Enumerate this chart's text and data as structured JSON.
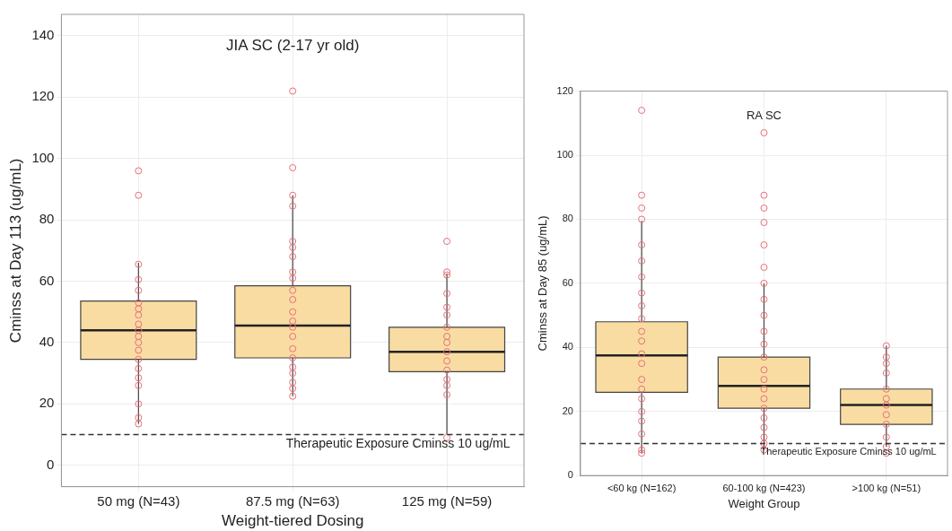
{
  "chart_data": [
    {
      "type": "box",
      "title": "JIA SC (2-17 yr old)",
      "xlabel": "Weight-tiered Dosing",
      "ylabel": "Cminss at Day 113 (ug/mL)",
      "categories": [
        "50 mg (N=43)",
        "87.5 mg (N=63)",
        "125 mg (N=59)"
      ],
      "color": "#f9dca2",
      "boxes": [
        {
          "low": 13.5,
          "q1": 34.5,
          "median": 44,
          "q3": 53.5,
          "high": 66
        },
        {
          "low": 22.5,
          "q1": 35,
          "median": 45.5,
          "q3": 58.5,
          "high": 88
        },
        {
          "low": 10,
          "q1": 30.5,
          "median": 37,
          "q3": 45,
          "high": 62.5
        }
      ],
      "series": [
        {
          "type": "scatter",
          "color": "#e8707a",
          "x": [
            "50 mg (N=43)",
            "50 mg (N=43)",
            "50 mg (N=43)",
            "50 mg (N=43)",
            "50 mg (N=43)",
            "50 mg (N=43)",
            "50 mg (N=43)",
            "50 mg (N=43)",
            "50 mg (N=43)",
            "50 mg (N=43)",
            "50 mg (N=43)",
            "50 mg (N=43)",
            "50 mg (N=43)",
            "50 mg (N=43)",
            "50 mg (N=43)",
            "50 mg (N=43)",
            "50 mg (N=43)",
            "50 mg (N=43)",
            "50 mg (N=43)",
            "50 mg (N=43)",
            "87.5 mg (N=63)",
            "87.5 mg (N=63)",
            "87.5 mg (N=63)",
            "87.5 mg (N=63)",
            "87.5 mg (N=63)",
            "87.5 mg (N=63)",
            "87.5 mg (N=63)",
            "87.5 mg (N=63)",
            "87.5 mg (N=63)",
            "87.5 mg (N=63)",
            "87.5 mg (N=63)",
            "87.5 mg (N=63)",
            "87.5 mg (N=63)",
            "87.5 mg (N=63)",
            "87.5 mg (N=63)",
            "87.5 mg (N=63)",
            "87.5 mg (N=63)",
            "87.5 mg (N=63)",
            "87.5 mg (N=63)",
            "87.5 mg (N=63)",
            "87.5 mg (N=63)",
            "87.5 mg (N=63)",
            "125 mg (N=59)",
            "125 mg (N=59)",
            "125 mg (N=59)",
            "125 mg (N=59)",
            "125 mg (N=59)",
            "125 mg (N=59)",
            "125 mg (N=59)",
            "125 mg (N=59)",
            "125 mg (N=59)",
            "125 mg (N=59)",
            "125 mg (N=59)",
            "125 mg (N=59)",
            "125 mg (N=59)",
            "125 mg (N=59)",
            "125 mg (N=59)",
            "125 mg (N=59)"
          ],
          "values": [
            13.5,
            15.5,
            20,
            26,
            28.5,
            31.5,
            34.5,
            37.5,
            40,
            42,
            44,
            46,
            49,
            51,
            53,
            57,
            60.5,
            65.5,
            88,
            96,
            22.5,
            25,
            27,
            30,
            32,
            35,
            38,
            42,
            45,
            47,
            50,
            54,
            57,
            61,
            63,
            68,
            71,
            73,
            84.5,
            88,
            97,
            122,
            9,
            23,
            26,
            28,
            31,
            34,
            37,
            40,
            42,
            45,
            49,
            51.5,
            56,
            62,
            63,
            73
          ]
        }
      ],
      "ref_lines": [
        {
          "axis": "y",
          "value": 10,
          "label": "Therapeutic Exposure Cminss 10 ug/mL",
          "line_style": "dashed"
        }
      ],
      "ylim": [
        -7,
        147
      ],
      "yticks": [
        0,
        20,
        40,
        60,
        80,
        100,
        120,
        140
      ],
      "grid": true,
      "marker": "circle",
      "legend": false
    },
    {
      "type": "box",
      "title": "RA SC",
      "xlabel": "Weight Group",
      "ylabel": "Cminss at Day 85 (ug/mL)",
      "categories": [
        "<60 kg (N=162)",
        "60-100 kg (N=423)",
        ">100 kg (N=51)"
      ],
      "color": "#f9dca2",
      "boxes": [
        {
          "low": 7,
          "q1": 26,
          "median": 37.5,
          "q3": 48,
          "high": 79.5
        },
        {
          "low": 8,
          "q1": 21,
          "median": 28,
          "q3": 37,
          "high": 60
        },
        {
          "low": 9,
          "q1": 16,
          "median": 22,
          "q3": 27,
          "high": 40.5
        }
      ],
      "series": [
        {
          "type": "scatter",
          "color": "#e8707a",
          "x": [
            "<60 kg (N=162)",
            "<60 kg (N=162)",
            "<60 kg (N=162)",
            "<60 kg (N=162)",
            "<60 kg (N=162)",
            "<60 kg (N=162)",
            "<60 kg (N=162)",
            "<60 kg (N=162)",
            "<60 kg (N=162)",
            "<60 kg (N=162)",
            "<60 kg (N=162)",
            "<60 kg (N=162)",
            "<60 kg (N=162)",
            "<60 kg (N=162)",
            "<60 kg (N=162)",
            "<60 kg (N=162)",
            "<60 kg (N=162)",
            "<60 kg (N=162)",
            "<60 kg (N=162)",
            "<60 kg (N=162)",
            "<60 kg (N=162)",
            "<60 kg (N=162)",
            "60-100 kg (N=423)",
            "60-100 kg (N=423)",
            "60-100 kg (N=423)",
            "60-100 kg (N=423)",
            "60-100 kg (N=423)",
            "60-100 kg (N=423)",
            "60-100 kg (N=423)",
            "60-100 kg (N=423)",
            "60-100 kg (N=423)",
            "60-100 kg (N=423)",
            "60-100 kg (N=423)",
            "60-100 kg (N=423)",
            "60-100 kg (N=423)",
            "60-100 kg (N=423)",
            "60-100 kg (N=423)",
            "60-100 kg (N=423)",
            "60-100 kg (N=423)",
            "60-100 kg (N=423)",
            "60-100 kg (N=423)",
            "60-100 kg (N=423)",
            "60-100 kg (N=423)",
            "60-100 kg (N=423)",
            ">100 kg (N=51)",
            ">100 kg (N=51)",
            ">100 kg (N=51)",
            ">100 kg (N=51)",
            ">100 kg (N=51)",
            ">100 kg (N=51)",
            ">100 kg (N=51)",
            ">100 kg (N=51)",
            ">100 kg (N=51)",
            ">100 kg (N=51)",
            ">100 kg (N=51)",
            ">100 kg (N=51)"
          ],
          "values": [
            7,
            8,
            13,
            17,
            20,
            24,
            27,
            30,
            35,
            38,
            42,
            45,
            49,
            53,
            57,
            62,
            67,
            72,
            80,
            83.5,
            87.5,
            114,
            8,
            10,
            12,
            15,
            18,
            21,
            24,
            27,
            30,
            33,
            37,
            41,
            45,
            50,
            55,
            60,
            65,
            72,
            79,
            83.5,
            87.5,
            107,
            7,
            12,
            16,
            19,
            22,
            24,
            27,
            32,
            35,
            37,
            40.5,
            9
          ]
        }
      ],
      "ref_lines": [
        {
          "axis": "y",
          "value": 10,
          "label": "Therapeutic Exposure Cminss 10 ug/mL",
          "line_style": "dashed"
        }
      ],
      "ylim": [
        0,
        120
      ],
      "yticks": [
        0,
        20,
        40,
        60,
        80,
        100,
        120
      ],
      "grid": true,
      "marker": "circle",
      "legend": false
    }
  ]
}
